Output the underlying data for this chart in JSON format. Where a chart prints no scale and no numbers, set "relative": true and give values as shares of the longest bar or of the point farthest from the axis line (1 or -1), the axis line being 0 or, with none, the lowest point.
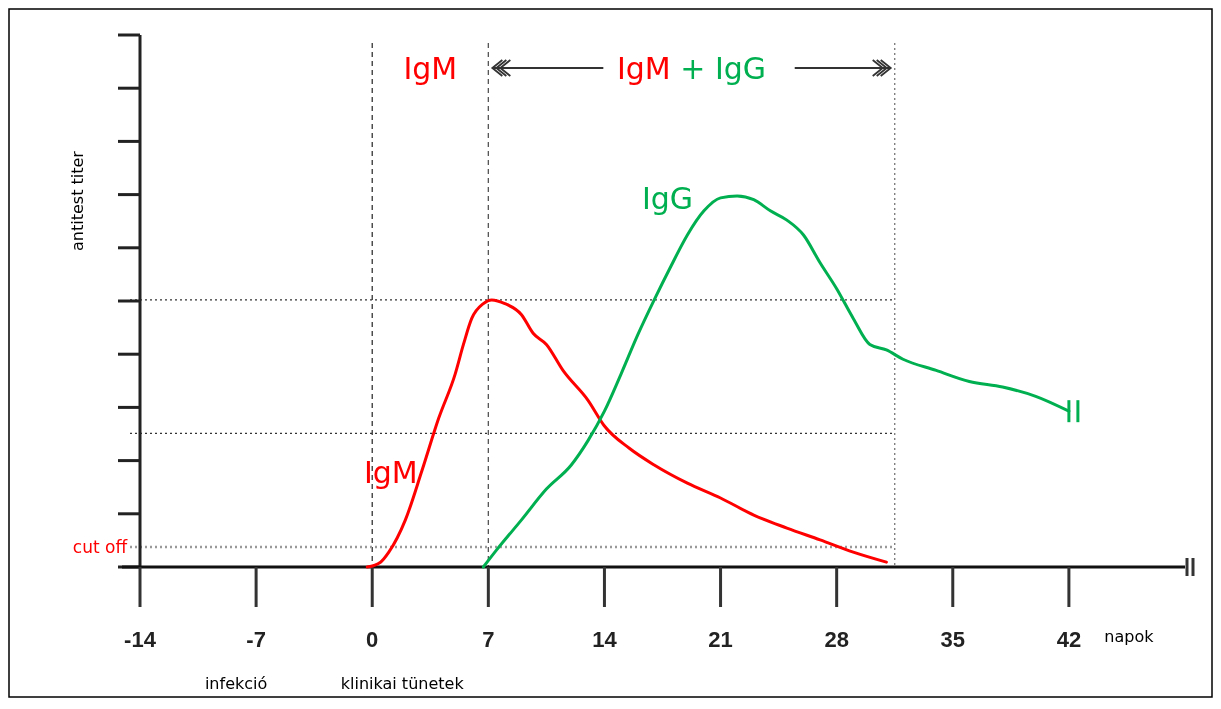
{
  "chart_data": {
    "type": "line",
    "xlabel": "napok",
    "ylabel": "antitest titer",
    "relative": true,
    "xlim": [
      -14,
      49
    ],
    "xticks": [
      -14,
      -7,
      0,
      7,
      14,
      21,
      28,
      35,
      42
    ],
    "series": [
      {
        "name": "IgM",
        "color": "#ff0000",
        "x": [
          -0.3,
          0.5,
          1,
          2,
          3,
          4,
          5,
          5.5,
          6,
          6.7,
          7.2,
          8,
          9,
          9.7,
          10.5,
          11.5,
          13,
          14,
          15.5,
          17,
          19,
          21,
          23,
          25,
          27,
          29,
          31
        ],
        "values": [
          0,
          0.013,
          0.04,
          0.127,
          0.26,
          0.4,
          0.52,
          0.6,
          0.67,
          0.71,
          0.72,
          0.71,
          0.68,
          0.63,
          0.6,
          0.53,
          0.45,
          0.38,
          0.32,
          0.275,
          0.226,
          0.186,
          0.14,
          0.105,
          0.073,
          0.04,
          0.013
        ]
      },
      {
        "name": "IgG",
        "color": "#00b050",
        "x": [
          6.7,
          7.5,
          9,
          10.5,
          12,
          13,
          14,
          15,
          16,
          17,
          18,
          19,
          20,
          21,
          22,
          23,
          24,
          25,
          26,
          27,
          28,
          29,
          30,
          31,
          32,
          34,
          36,
          38,
          40,
          42
        ],
        "values": [
          0,
          0.046,
          0.127,
          0.21,
          0.275,
          0.34,
          0.42,
          0.52,
          0.625,
          0.72,
          0.81,
          0.895,
          0.96,
          0.995,
          1,
          0.99,
          0.96,
          0.935,
          0.895,
          0.82,
          0.75,
          0.67,
          0.6,
          0.585,
          0.56,
          0.53,
          0.5,
          0.485,
          0.46,
          0.42
        ]
      }
    ],
    "ref_lines": [
      {
        "axis": "x",
        "value": 0,
        "line_style": "dashed",
        "color": "#333333"
      },
      {
        "axis": "x",
        "value": 7,
        "line_style": "dashed",
        "color": "#555555"
      },
      {
        "axis": "x",
        "value": 31.5,
        "line_style": "dotted",
        "color": "#777777"
      },
      {
        "axis": "y",
        "value": 0.72,
        "line_style": "dotted",
        "color": "#333333"
      },
      {
        "axis": "y",
        "value": 0.36,
        "line_style": "dotted",
        "color": "#333333"
      },
      {
        "axis": "y",
        "value": 0.054,
        "label": "cut off",
        "line_style": "dotted",
        "color": "#999999"
      }
    ],
    "annotations": [
      "IgM",
      "IgM + IgG",
      "infekció",
      "klinikai tünetek"
    ],
    "marker": "none",
    "line_style": "solid"
  }
}
